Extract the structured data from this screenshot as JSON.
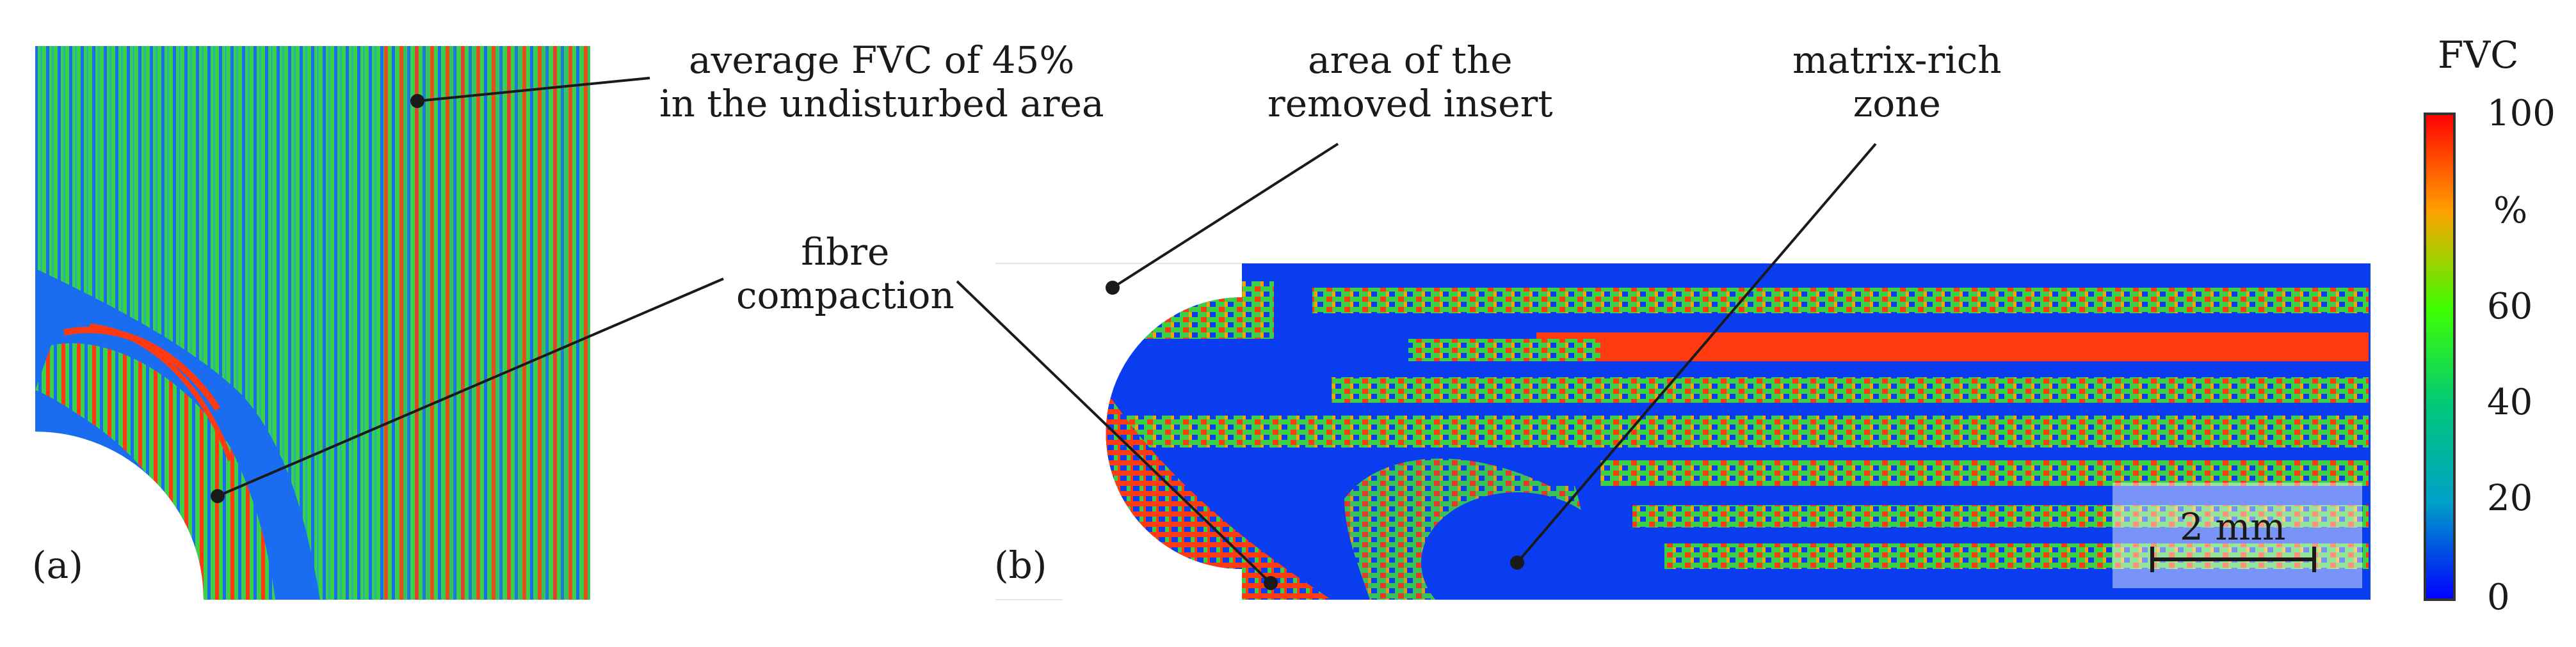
{
  "panel_a": {
    "tag": "(a)",
    "annotation_top": [
      "average FVC of 45%",
      "in the undisturbed area"
    ],
    "annotation_fibre": [
      "fibre",
      "compaction"
    ]
  },
  "panel_b": {
    "tag": "(b)",
    "annotation_insert": [
      "area of the",
      "removed insert"
    ],
    "annotation_matrix": [
      "matrix-rich",
      "zone"
    ],
    "scale_bar_label": "2 mm"
  },
  "colorbar": {
    "title": "FVC",
    "unit": "%",
    "ticks": [
      "100",
      "60",
      "40",
      "20",
      "0"
    ],
    "colors": [
      "#ff0000",
      "#ffa000",
      "#00ff00",
      "#00a0a0",
      "#0000ff"
    ]
  },
  "colors": {
    "matrix_blue": "#0a3cf0",
    "fibre_green": "#3cd046",
    "compaction_red": "#ff3a10",
    "leader": "#1a1a1a"
  }
}
